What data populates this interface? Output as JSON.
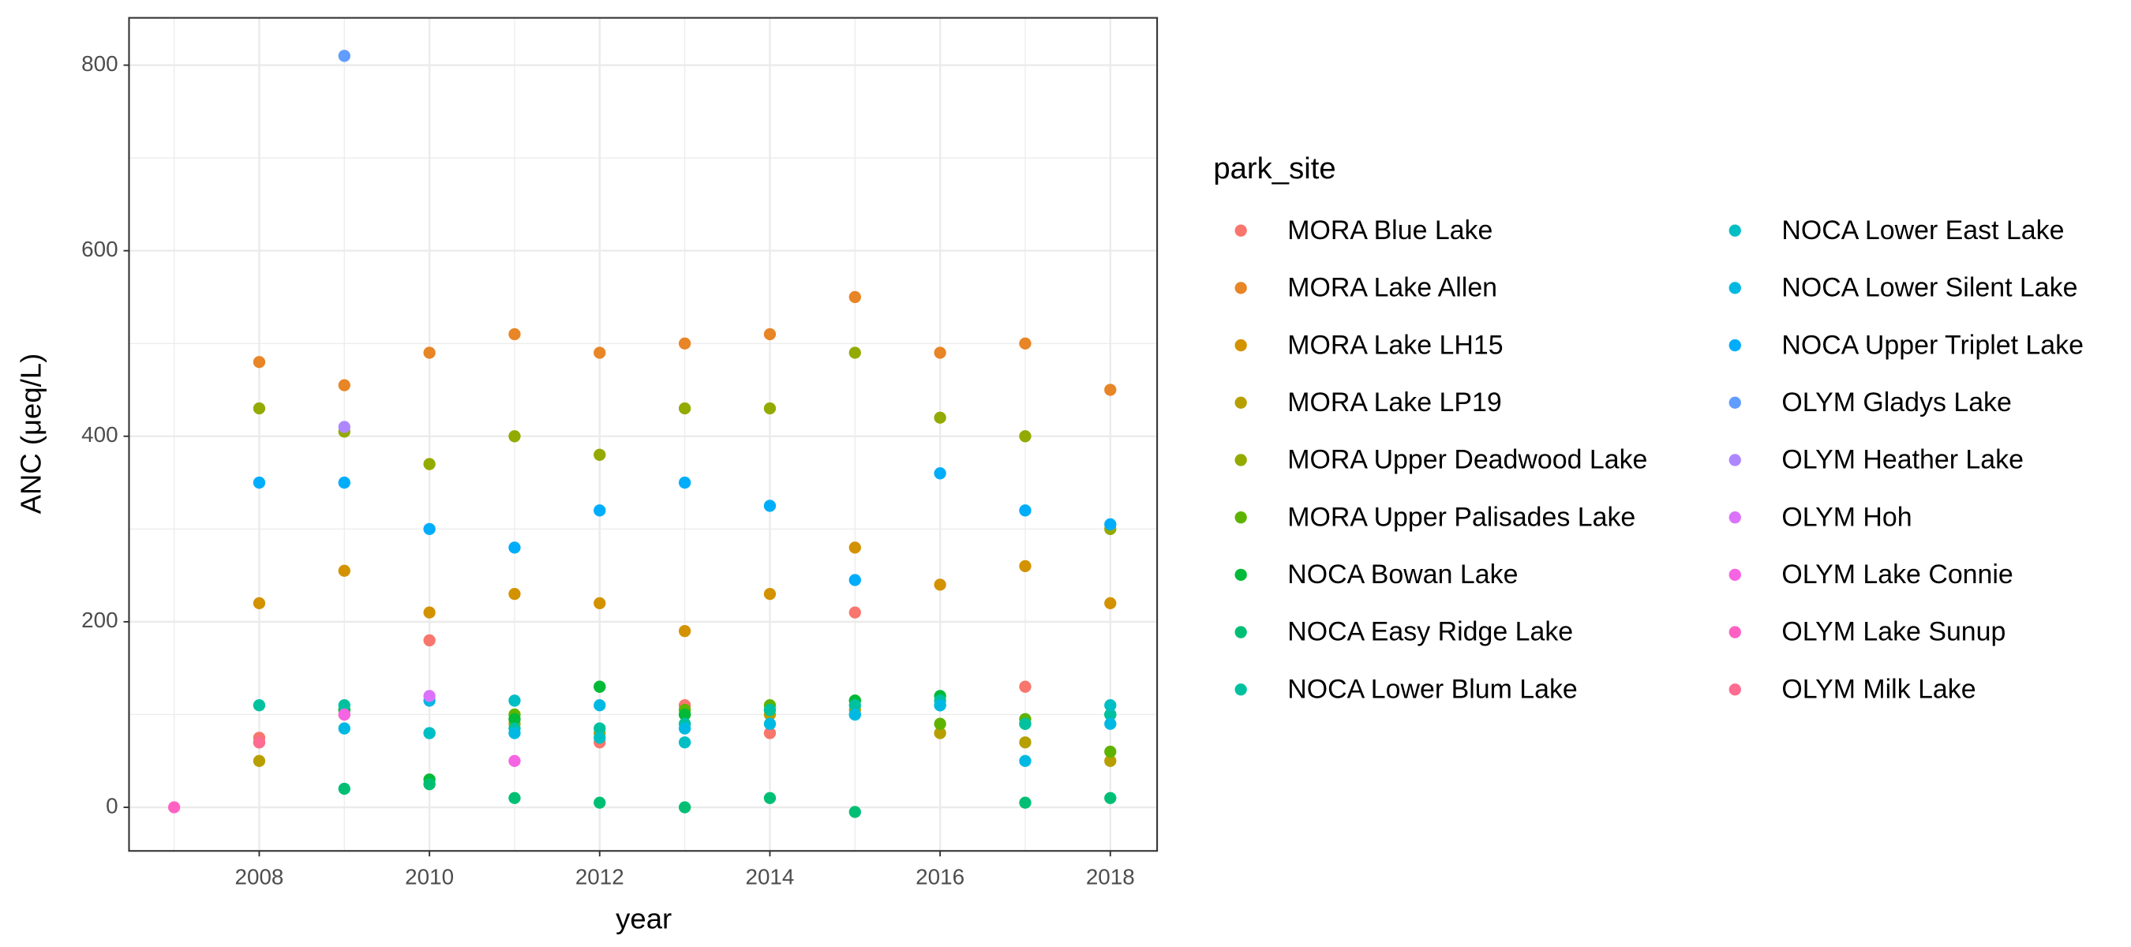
{
  "chart_data": {
    "type": "scatter",
    "x_label": "year",
    "y_label": "ANC (μeq/L)",
    "legend_title": "park_site",
    "legend_position": "right",
    "grid": true,
    "xlim": [
      2006.47,
      2018.55
    ],
    "ylim": [
      -47,
      851
    ],
    "xticks": [
      2008,
      2010,
      2012,
      2014,
      2016,
      2018
    ],
    "yticks": [
      0,
      200,
      400,
      600,
      800
    ],
    "x_minor_grid": [
      2007,
      2009,
      2011,
      2013,
      2015,
      2017
    ],
    "y_minor_grid": [
      100,
      300,
      500,
      700
    ],
    "x": [
      2007,
      2008,
      2009,
      2010,
      2011,
      2012,
      2013,
      2014,
      2015,
      2016,
      2017,
      2018
    ],
    "series": [
      {
        "name": "MORA Blue Lake",
        "color": "#F8766D",
        "values": [
          null,
          75,
          null,
          180,
          95,
          70,
          110,
          80,
          210,
          null,
          130,
          null
        ]
      },
      {
        "name": "MORA Lake Allen",
        "color": "#E88526",
        "values": [
          null,
          480,
          455,
          490,
          510,
          490,
          500,
          510,
          550,
          490,
          500,
          450
        ]
      },
      {
        "name": "MORA Lake LH15",
        "color": "#D39200",
        "values": [
          null,
          220,
          255,
          210,
          230,
          220,
          190,
          230,
          280,
          240,
          260,
          220
        ]
      },
      {
        "name": "MORA Lake LP19",
        "color": "#B79F00",
        "values": [
          null,
          50,
          100,
          null,
          90,
          80,
          100,
          100,
          105,
          80,
          70,
          50
        ]
      },
      {
        "name": "MORA Upper Deadwood Lake",
        "color": "#93AA00",
        "values": [
          null,
          430,
          405,
          370,
          400,
          380,
          430,
          430,
          490,
          420,
          400,
          300
        ]
      },
      {
        "name": "MORA Upper Palisades Lake",
        "color": "#5EB300",
        "values": [
          null,
          70,
          105,
          25,
          100,
          130,
          105,
          110,
          115,
          90,
          95,
          60
        ]
      },
      {
        "name": "NOCA Bowan Lake",
        "color": "#00BA38",
        "values": [
          null,
          null,
          105,
          30,
          95,
          130,
          100,
          105,
          115,
          120,
          90,
          100
        ]
      },
      {
        "name": "NOCA Easy Ridge Lake",
        "color": "#00BF74",
        "values": [
          null,
          null,
          20,
          25,
          10,
          5,
          0,
          10,
          -5,
          null,
          5,
          10
        ]
      },
      {
        "name": "NOCA Lower Blum Lake",
        "color": "#00C19F",
        "values": [
          null,
          110,
          110,
          80,
          85,
          85,
          90,
          105,
          110,
          115,
          90,
          100
        ]
      },
      {
        "name": "NOCA Lower East Lake",
        "color": "#00BFC4",
        "values": [
          null,
          null,
          null,
          80,
          115,
          75,
          70,
          null,
          100,
          110,
          null,
          110
        ]
      },
      {
        "name": "NOCA Lower Silent Lake",
        "color": "#00B9E3",
        "values": [
          null,
          null,
          85,
          115,
          80,
          110,
          85,
          90,
          100,
          110,
          50,
          90
        ]
      },
      {
        "name": "NOCA Upper Triplet Lake",
        "color": "#00ADFA",
        "values": [
          null,
          350,
          350,
          300,
          280,
          320,
          350,
          325,
          245,
          360,
          320,
          305
        ]
      },
      {
        "name": "OLYM Gladys Lake",
        "color": "#619CFF",
        "values": [
          null,
          null,
          810,
          null,
          null,
          null,
          null,
          null,
          null,
          null,
          null,
          null
        ]
      },
      {
        "name": "OLYM Heather Lake",
        "color": "#AE87FF",
        "values": [
          null,
          null,
          410,
          null,
          null,
          null,
          null,
          null,
          null,
          null,
          null,
          null
        ]
      },
      {
        "name": "OLYM Hoh",
        "color": "#DB72FB",
        "values": [
          null,
          null,
          null,
          120,
          null,
          null,
          null,
          null,
          null,
          null,
          null,
          null
        ]
      },
      {
        "name": "OLYM Lake Connie",
        "color": "#F564E3",
        "values": [
          null,
          null,
          100,
          null,
          50,
          null,
          null,
          null,
          null,
          null,
          null,
          null
        ]
      },
      {
        "name": "OLYM Lake Sunup",
        "color": "#FF61C3",
        "values": [
          0,
          null,
          null,
          null,
          null,
          null,
          null,
          null,
          null,
          null,
          null,
          null
        ]
      },
      {
        "name": "OLYM Milk Lake",
        "color": "#FF6C91",
        "values": [
          null,
          70,
          null,
          null,
          null,
          null,
          null,
          null,
          null,
          null,
          null,
          null
        ]
      }
    ]
  }
}
